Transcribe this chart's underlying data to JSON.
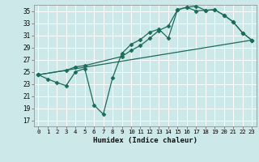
{
  "xlabel": "Humidex (Indice chaleur)",
  "background_color": "#cce8e8",
  "grid_color": "#ffffff",
  "line_color": "#1a6b5a",
  "xlim": [
    -0.5,
    23.5
  ],
  "ylim": [
    16,
    36
  ],
  "yticks": [
    17,
    19,
    21,
    23,
    25,
    27,
    29,
    31,
    33,
    35
  ],
  "xticks": [
    0,
    1,
    2,
    3,
    4,
    5,
    6,
    7,
    8,
    9,
    10,
    11,
    12,
    13,
    14,
    15,
    16,
    17,
    18,
    19,
    20,
    21,
    22,
    23
  ],
  "line1_x": [
    0,
    1,
    2,
    3,
    4,
    5,
    6,
    7,
    8,
    9,
    10,
    11,
    12,
    13,
    14,
    15,
    16,
    17,
    18,
    19,
    20,
    21,
    22,
    23
  ],
  "line1_y": [
    24.5,
    23.8,
    23.2,
    22.7,
    25.0,
    25.5,
    19.5,
    18.0,
    24.0,
    28.0,
    29.5,
    30.3,
    31.5,
    32.0,
    30.5,
    35.2,
    35.6,
    35.8,
    35.1,
    35.2,
    34.3,
    33.2,
    31.4,
    30.2
  ],
  "line2_x": [
    0,
    3,
    4,
    5,
    9,
    10,
    11,
    12,
    13,
    14,
    15,
    16,
    17,
    18,
    19,
    20,
    21,
    22,
    23
  ],
  "line2_y": [
    24.5,
    25.2,
    25.8,
    26.0,
    27.5,
    28.5,
    29.3,
    30.5,
    31.8,
    32.5,
    35.2,
    35.6,
    35.0,
    35.1,
    35.2,
    34.3,
    33.2,
    31.4,
    30.2
  ],
  "line3_x": [
    0,
    23
  ],
  "line3_y": [
    24.5,
    30.2
  ]
}
